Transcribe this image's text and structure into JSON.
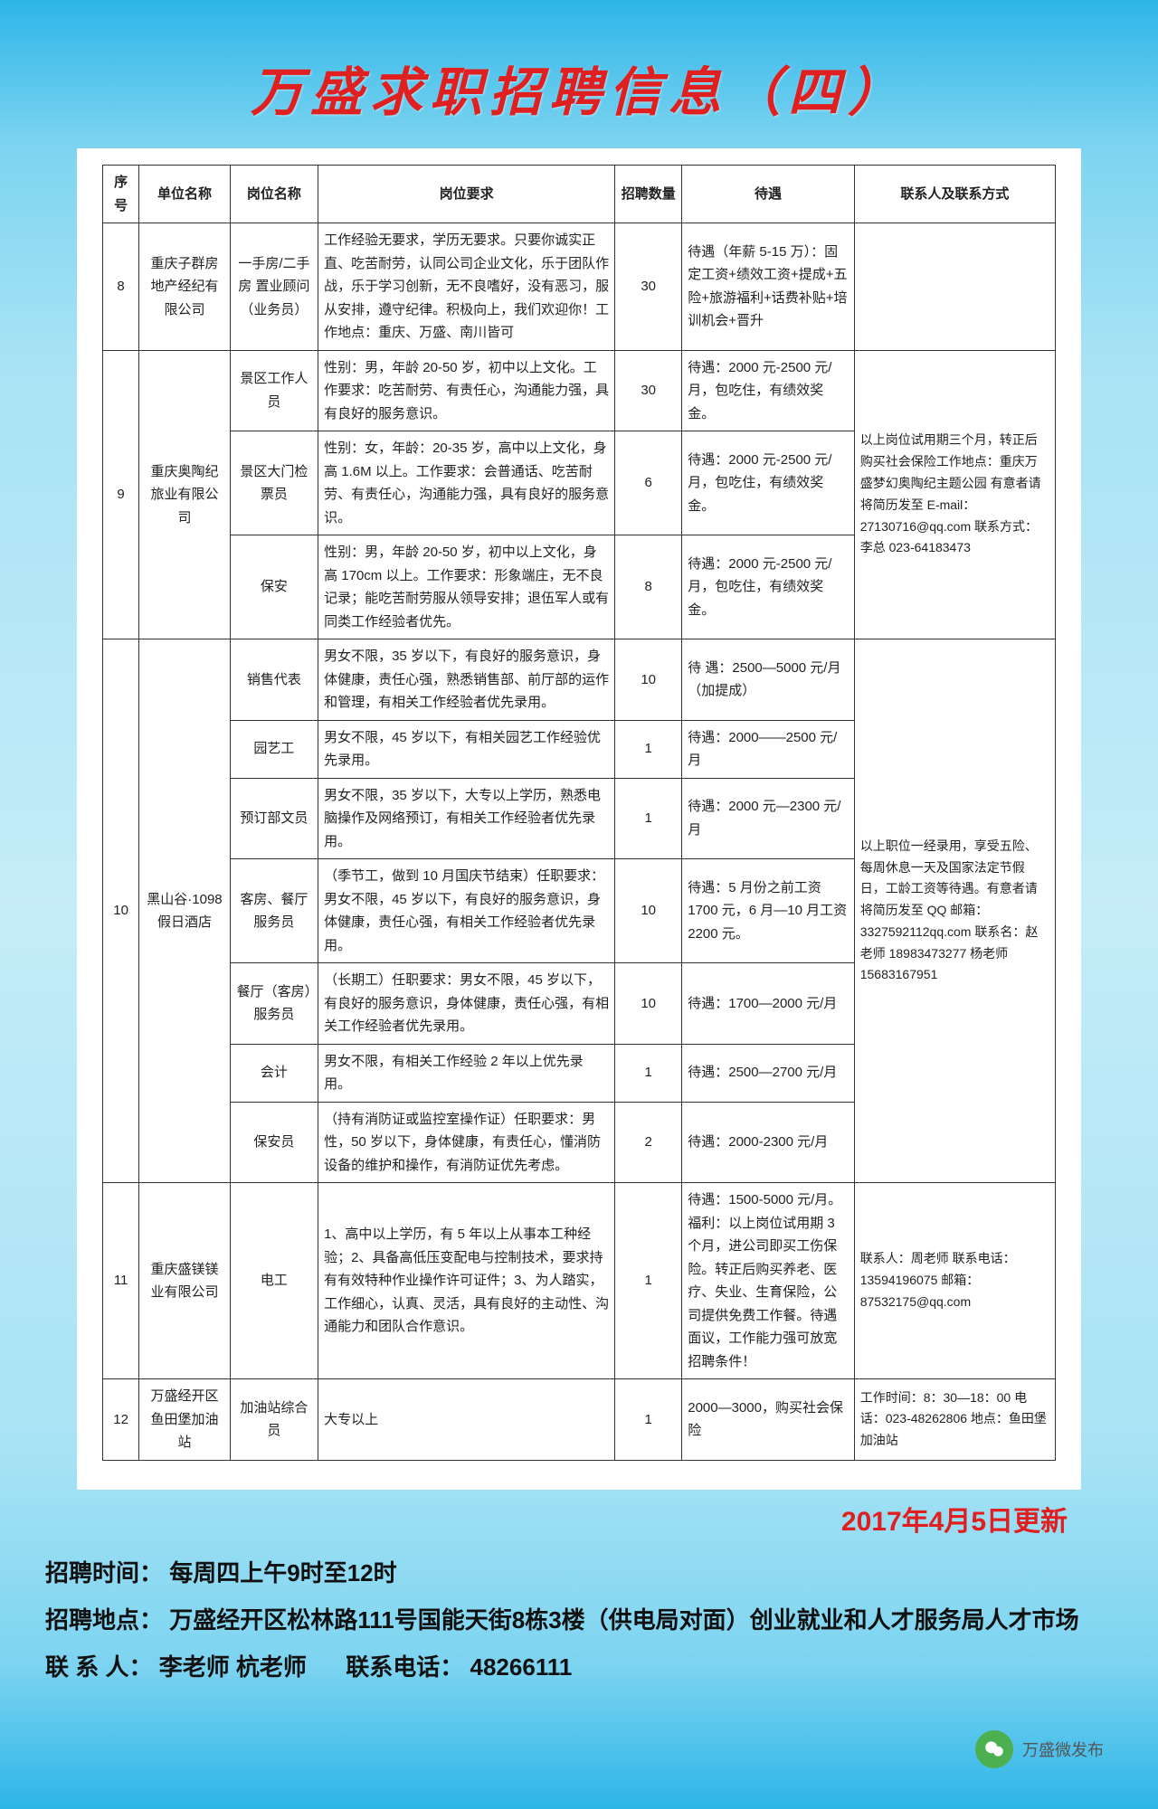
{
  "title": "万盛求职招聘信息（四）",
  "headers": {
    "seq": "序号",
    "unit": "单位名称",
    "pos": "岗位名称",
    "req": "岗位要求",
    "num": "招聘数量",
    "treat": "待遇",
    "contact": "联系人及联系方式"
  },
  "rows": [
    {
      "seq": "8",
      "unit": "重庆子群房地产经纪有限公司",
      "positions": [
        {
          "pos": "一手房/二手房 置业顾问（业务员）",
          "req": "工作经验无要求，学历无要求。只要你诚实正直、吃苦耐劳，认同公司企业文化，乐于团队作战，乐于学习创新，无不良嗜好，没有恶习，服从安排，遵守纪律。积极向上，我们欢迎你！工作地点：重庆、万盛、南川皆可",
          "num": "30",
          "treat": "待遇（年薪 5-15 万）：固定工资+绩效工资+提成+五险+旅游福利+话费补贴+培训机会+晋升"
        }
      ],
      "contact": ""
    },
    {
      "seq": "9",
      "unit": "重庆奥陶纪旅业有限公司",
      "positions": [
        {
          "pos": "景区工作人员",
          "req": "性别：男，年龄 20-50 岁，初中以上文化。工作要求：吃苦耐劳、有责任心，沟通能力强，具有良好的服务意识。",
          "num": "30",
          "treat": "待遇：2000 元-2500 元/月，包吃住，有绩效奖金。"
        },
        {
          "pos": "景区大门检票员",
          "req": "性别：女，年龄：20-35 岁，高中以上文化，身高 1.6M 以上。工作要求：会普通话、吃苦耐劳、有责任心，沟通能力强，具有良好的服务意识。",
          "num": "6",
          "treat": "待遇：2000 元-2500 元/月，包吃住，有绩效奖金。"
        },
        {
          "pos": "保安",
          "req": "性别：男，年龄 20-50 岁，初中以上文化，身高 170cm 以上。工作要求：形象端庄，无不良记录；能吃苦耐劳服从领导安排；退伍军人或有同类工作经验者优先。",
          "num": "8",
          "treat": "待遇：2000 元-2500 元/月，包吃住，有绩效奖金。"
        }
      ],
      "contact": "以上岗位试用期三个月，转正后购买社会保险工作地点：重庆万盛梦幻奥陶纪主题公园 有意者请将简历发至 E-mail：27130716@qq.com 联系方式：李总 023-64183473"
    },
    {
      "seq": "10",
      "unit": "黑山谷·1098假日酒店",
      "positions": [
        {
          "pos": "销售代表",
          "req": "男女不限，35 岁以下，有良好的服务意识，身体健康，责任心强，熟悉销售部、前厅部的运作和管理，有相关工作经验者优先录用。",
          "num": "10",
          "treat": "待 遇：2500—5000 元/月（加提成）"
        },
        {
          "pos": "园艺工",
          "req": "男女不限，45 岁以下，有相关园艺工作经验优先录用。",
          "num": "1",
          "treat": "待遇：2000——2500 元/月"
        },
        {
          "pos": "预订部文员",
          "req": "男女不限，35 岁以下，大专以上学历，熟悉电脑操作及网络预订，有相关工作经验者优先录用。",
          "num": "1",
          "treat": "待遇：2000 元—2300 元/月"
        },
        {
          "pos": "客房、餐厅服务员",
          "req": "（季节工，做到 10 月国庆节结束）任职要求：男女不限，45 岁以下，有良好的服务意识，身体健康，责任心强，有相关工作经验者优先录用。",
          "num": "10",
          "treat": "待遇：5 月份之前工资 1700 元，6 月—10 月工资 2200 元。"
        },
        {
          "pos": "餐厅（客房）服务员",
          "req": "（长期工）任职要求：男女不限，45 岁以下，有良好的服务意识，身体健康，责任心强，有相关工作经验者优先录用。",
          "num": "10",
          "treat": "待遇：1700—2000 元/月"
        },
        {
          "pos": "会计",
          "req": "男女不限，有相关工作经验 2 年以上优先录用。",
          "num": "1",
          "treat": "待遇：2500—2700 元/月"
        },
        {
          "pos": "保安员",
          "req": "（持有消防证或监控室操作证）任职要求：男性，50 岁以下，身体健康，有责任心，懂消防设备的维护和操作，有消防证优先考虑。",
          "num": "2",
          "treat": "待遇：2000-2300 元/月"
        }
      ],
      "contact": "以上职位一经录用，享受五险、每周休息一天及国家法定节假日，工龄工资等待遇。有意者请将简历发至 QQ 邮箱：3327592112qq.com 联系名：赵老师 18983473277 杨老师 15683167951"
    },
    {
      "seq": "11",
      "unit": "重庆盛镁镁业有限公司",
      "positions": [
        {
          "pos": "电工",
          "req": "1、高中以上学历，有 5 年以上从事本工种经验；2、具备高低压变配电与控制技术，要求持有有效特种作业操作许可证件；3、为人踏实，工作细心，认真、灵活，具有良好的主动性、沟通能力和团队合作意识。",
          "num": "1",
          "treat": "待遇：1500-5000 元/月。福利：以上岗位试用期 3 个月，进公司即买工伤保险。转正后购买养老、医疗、失业、生育保险，公司提供免费工作餐。待遇面议，工作能力强可放宽招聘条件！"
        }
      ],
      "contact": "联系人：周老师 联系电话：13594196075 邮箱：87532175@qq.com"
    },
    {
      "seq": "12",
      "unit": "万盛经开区鱼田堡加油站",
      "positions": [
        {
          "pos": "加油站综合员",
          "req": "大专以上",
          "num": "1",
          "treat": "2000—3000，购买社会保险"
        }
      ],
      "contact": "工作时间：8：30—18：00 电话：023-48262806 地点：鱼田堡加油站"
    }
  ],
  "update": "2017年4月5日更新",
  "footer": {
    "time_label": "招聘时间：",
    "time_val": "每周四上午9时至12时",
    "addr_label": "招聘地点：",
    "addr_val": "万盛经开区松林路111号国能天街8栋3楼（供电局对面）创业就业和人才服务局人才市场",
    "person_label": "联 系 人：",
    "person_val": "李老师  杭老师",
    "phone_label": "联系电话：",
    "phone_val": "48266111"
  },
  "wx": "万盛微发布"
}
